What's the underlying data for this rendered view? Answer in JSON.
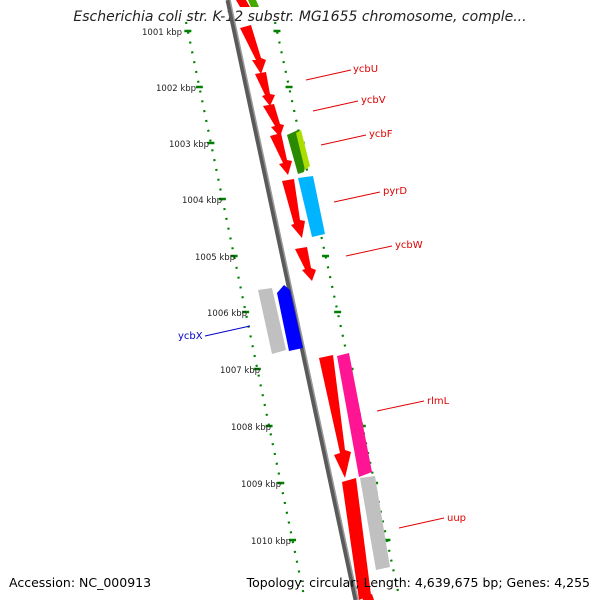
{
  "title": "Escherichia coli str. K-12 substr. MG1655 chromosome, comple...",
  "footer": {
    "accession": "Accession: NC_000913",
    "summary": "Topology: circular; Length: 4,639,675 bp; Genes: 4,255"
  },
  "scale_labels": [
    "1001 kbp",
    "1002 kbp",
    "1003 kbp",
    "1004 kbp",
    "1005 kbp",
    "1006 kbp",
    "1007 kbp",
    "1008 kbp",
    "1009 kbp",
    "1010 kbp"
  ],
  "genes": [
    {
      "name": "ycbU",
      "color": "#ff0000"
    },
    {
      "name": "ycbV",
      "color": "#ff0000"
    },
    {
      "name": "ycbF",
      "color": "#ff0000"
    },
    {
      "name": "pyrD",
      "color": "#ff0000"
    },
    {
      "name": "ycbW",
      "color": "#ff0000"
    },
    {
      "name": "ycbX",
      "color": "#0000c8"
    },
    {
      "name": "rlmL",
      "color": "#ff0000"
    },
    {
      "name": "uup",
      "color": "#ff0000"
    }
  ],
  "colors": {
    "backbone": "#808080",
    "ruler": "#008000",
    "gene_red": "#ff0000",
    "gene_green": "#44aa00",
    "gene_cyan": "#00b4ff",
    "gene_blue": "#0000ff",
    "gene_magenta": "#ff1493",
    "gene_gray": "#c0c0c0"
  }
}
